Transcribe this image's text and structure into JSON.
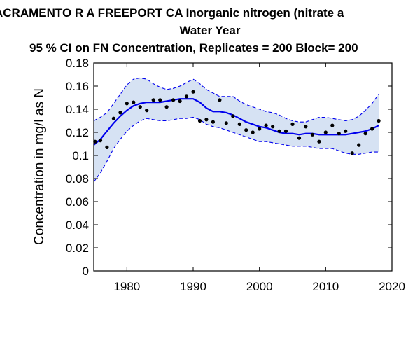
{
  "titles": {
    "line1": "ACRAMENTO R A FREEPORT CA   Inorganic nitrogen (nitrate a",
    "line2": "Water Year",
    "line3": "95 % CI on FN Concentration, Replicates = 200 Block= 200"
  },
  "chart_data": {
    "type": "line",
    "ylabel": "Concentration in mg/l as N",
    "xlim": [
      1975,
      2020
    ],
    "ylim": [
      0,
      0.18
    ],
    "x_ticks": [
      "1980",
      "1990",
      "2000",
      "2010",
      "2020"
    ],
    "y_ticks": [
      "0",
      "0.02",
      "0.04",
      "0.06",
      "0.08",
      "0.1",
      "0.12",
      "0.14",
      "0.16",
      "0.18"
    ],
    "grid": false,
    "colors": {
      "line": "#0000ee",
      "band": "#d6e2f3",
      "points": "#000000"
    },
    "series": [
      {
        "type": "scatter",
        "x": [
          1975.2,
          1976,
          1977,
          1978,
          1979,
          1980,
          1981,
          1982,
          1983,
          1984,
          1985,
          1986,
          1987,
          1988,
          1989,
          1990,
          1991,
          1992,
          1993,
          1994,
          1995,
          1996,
          1997,
          1998,
          1999,
          2000,
          2001,
          2002,
          2003,
          2004,
          2005,
          2006,
          2007,
          2008,
          2009,
          2010,
          2011,
          2012,
          2013,
          2014,
          2015,
          2016,
          2017,
          2018
        ],
        "y": [
          0.112,
          0.113,
          0.107,
          0.132,
          0.137,
          0.145,
          0.146,
          0.142,
          0.139,
          0.148,
          0.148,
          0.142,
          0.148,
          0.147,
          0.151,
          0.155,
          0.13,
          0.131,
          0.129,
          0.148,
          0.128,
          0.134,
          0.127,
          0.122,
          0.12,
          0.123,
          0.126,
          0.125,
          0.121,
          0.121,
          0.127,
          0.115,
          0.125,
          0.118,
          0.112,
          0.12,
          0.126,
          0.119,
          0.121,
          0.102,
          0.109,
          0.119,
          0.123,
          0.13
        ]
      },
      {
        "type": "line",
        "x": [
          1975,
          1976,
          1977,
          1978,
          1979,
          1980,
          1981,
          1982,
          1983,
          1984,
          1985,
          1986,
          1987,
          1988,
          1989,
          1990,
          1991,
          1992,
          1993,
          1994,
          1995,
          1996,
          1997,
          1998,
          1999,
          2000,
          2001,
          2002,
          2003,
          2004,
          2005,
          2006,
          2007,
          2008,
          2009,
          2010,
          2011,
          2012,
          2013,
          2014,
          2015,
          2016,
          2017,
          2018
        ],
        "y": [
          0.109,
          0.114,
          0.121,
          0.128,
          0.134,
          0.139,
          0.143,
          0.145,
          0.146,
          0.146,
          0.146,
          0.147,
          0.148,
          0.149,
          0.149,
          0.149,
          0.146,
          0.141,
          0.138,
          0.138,
          0.137,
          0.135,
          0.132,
          0.129,
          0.127,
          0.125,
          0.124,
          0.122,
          0.12,
          0.119,
          0.119,
          0.118,
          0.119,
          0.119,
          0.118,
          0.118,
          0.118,
          0.118,
          0.118,
          0.119,
          0.12,
          0.121,
          0.123,
          0.126
        ]
      },
      {
        "type": "band_upper",
        "x": [
          1975,
          1976,
          1977,
          1978,
          1979,
          1980,
          1981,
          1982,
          1983,
          1984,
          1985,
          1986,
          1987,
          1988,
          1989,
          1990,
          1991,
          1992,
          1993,
          1994,
          1995,
          1996,
          1997,
          1998,
          1999,
          2000,
          2001,
          2002,
          2003,
          2004,
          2005,
          2006,
          2007,
          2008,
          2009,
          2010,
          2011,
          2012,
          2013,
          2014,
          2015,
          2016,
          2017,
          2018
        ],
        "y": [
          0.13,
          0.133,
          0.137,
          0.145,
          0.153,
          0.161,
          0.166,
          0.167,
          0.166,
          0.162,
          0.159,
          0.157,
          0.158,
          0.16,
          0.163,
          0.166,
          0.162,
          0.157,
          0.154,
          0.151,
          0.151,
          0.151,
          0.147,
          0.144,
          0.142,
          0.14,
          0.138,
          0.137,
          0.135,
          0.132,
          0.13,
          0.129,
          0.129,
          0.131,
          0.133,
          0.133,
          0.132,
          0.131,
          0.13,
          0.131,
          0.134,
          0.139,
          0.145,
          0.153
        ]
      },
      {
        "type": "band_lower",
        "x": [
          1975,
          1976,
          1977,
          1978,
          1979,
          1980,
          1981,
          1982,
          1983,
          1984,
          1985,
          1986,
          1987,
          1988,
          1989,
          1990,
          1991,
          1992,
          1993,
          1994,
          1995,
          1996,
          1997,
          1998,
          1999,
          2000,
          2001,
          2002,
          2003,
          2004,
          2005,
          2006,
          2007,
          2008,
          2009,
          2010,
          2011,
          2012,
          2013,
          2014,
          2015,
          2016,
          2017,
          2018
        ],
        "y": [
          0.077,
          0.085,
          0.095,
          0.106,
          0.114,
          0.121,
          0.126,
          0.13,
          0.132,
          0.131,
          0.13,
          0.13,
          0.131,
          0.132,
          0.132,
          0.133,
          0.131,
          0.127,
          0.125,
          0.124,
          0.122,
          0.12,
          0.118,
          0.116,
          0.114,
          0.112,
          0.112,
          0.111,
          0.11,
          0.109,
          0.108,
          0.108,
          0.108,
          0.107,
          0.106,
          0.106,
          0.106,
          0.104,
          0.102,
          0.101,
          0.101,
          0.102,
          0.103,
          0.103
        ]
      }
    ]
  }
}
